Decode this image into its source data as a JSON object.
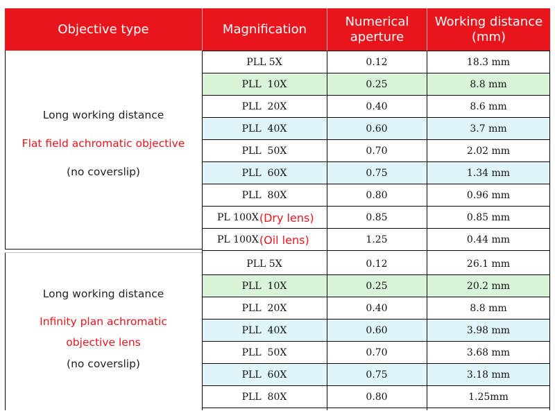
{
  "headers": [
    "Objective type",
    "Magnification",
    "Numerical\naperture",
    "Working distance\n(mm)"
  ],
  "groups": [
    {
      "line1": "Long working distance",
      "line2": "Flat field achromatic objective",
      "line3": "(no coverslip)",
      "rows": [
        {
          "mag": "PLL 5X",
          "note": "",
          "na": "0.12",
          "wd": "18.3 mm",
          "color": "white"
        },
        {
          "mag": "PLL  10X",
          "note": "",
          "na": "0.25",
          "wd": "8.8 mm",
          "color": "green"
        },
        {
          "mag": "PLL  20X",
          "note": "",
          "na": "0.40",
          "wd": "8.6 mm",
          "color": "white"
        },
        {
          "mag": "PLL  40X",
          "note": "",
          "na": "0.60",
          "wd": "3.7 mm",
          "color": "cyan"
        },
        {
          "mag": "PLL  50X",
          "note": "",
          "na": "0.70",
          "wd": "2.02 mm",
          "color": "white"
        },
        {
          "mag": "PLL  60X",
          "note": "",
          "na": "0.75",
          "wd": "1.34 mm",
          "color": "cyan"
        },
        {
          "mag": "PLL  80X",
          "note": "",
          "na": "0.80",
          "wd": "0.96 mm",
          "color": "white"
        },
        {
          "mag": "PL 100X",
          "note": "(Dry lens)",
          "na": "0.85",
          "wd": "0.85 mm",
          "color": "white"
        },
        {
          "mag": "PL 100X",
          "note": "(Oil lens)",
          "na": "1.25",
          "wd": "0.44 mm",
          "color": "white"
        }
      ]
    },
    {
      "line1": "Long working distance",
      "line2": "Infinity plan achromatic",
      "line2b": "objective lens",
      "line3": "(no coverslip)",
      "rows": [
        {
          "mag": "PLL 5X",
          "note": "",
          "na": "0.12",
          "wd": "26.1 mm",
          "color": "white"
        },
        {
          "mag": "PLL  10X",
          "note": "",
          "na": "0.25",
          "wd": "20.2 mm",
          "color": "green"
        },
        {
          "mag": "PLL  20X",
          "note": "",
          "na": "0.40",
          "wd": "8.8 mm",
          "color": "white"
        },
        {
          "mag": "PLL  40X",
          "note": "",
          "na": "0.60",
          "wd": "3.98 mm",
          "color": "cyan"
        },
        {
          "mag": "PLL  50X",
          "note": "",
          "na": "0.70",
          "wd": "3.68 mm",
          "color": "white"
        },
        {
          "mag": "PLL  60X",
          "note": "",
          "na": "0.75",
          "wd": "3.18 mm",
          "color": "cyan"
        },
        {
          "mag": "PLL  80X",
          "note": "",
          "na": "0.80",
          "wd": "1.25mm",
          "color": "white"
        }
      ]
    }
  ]
}
